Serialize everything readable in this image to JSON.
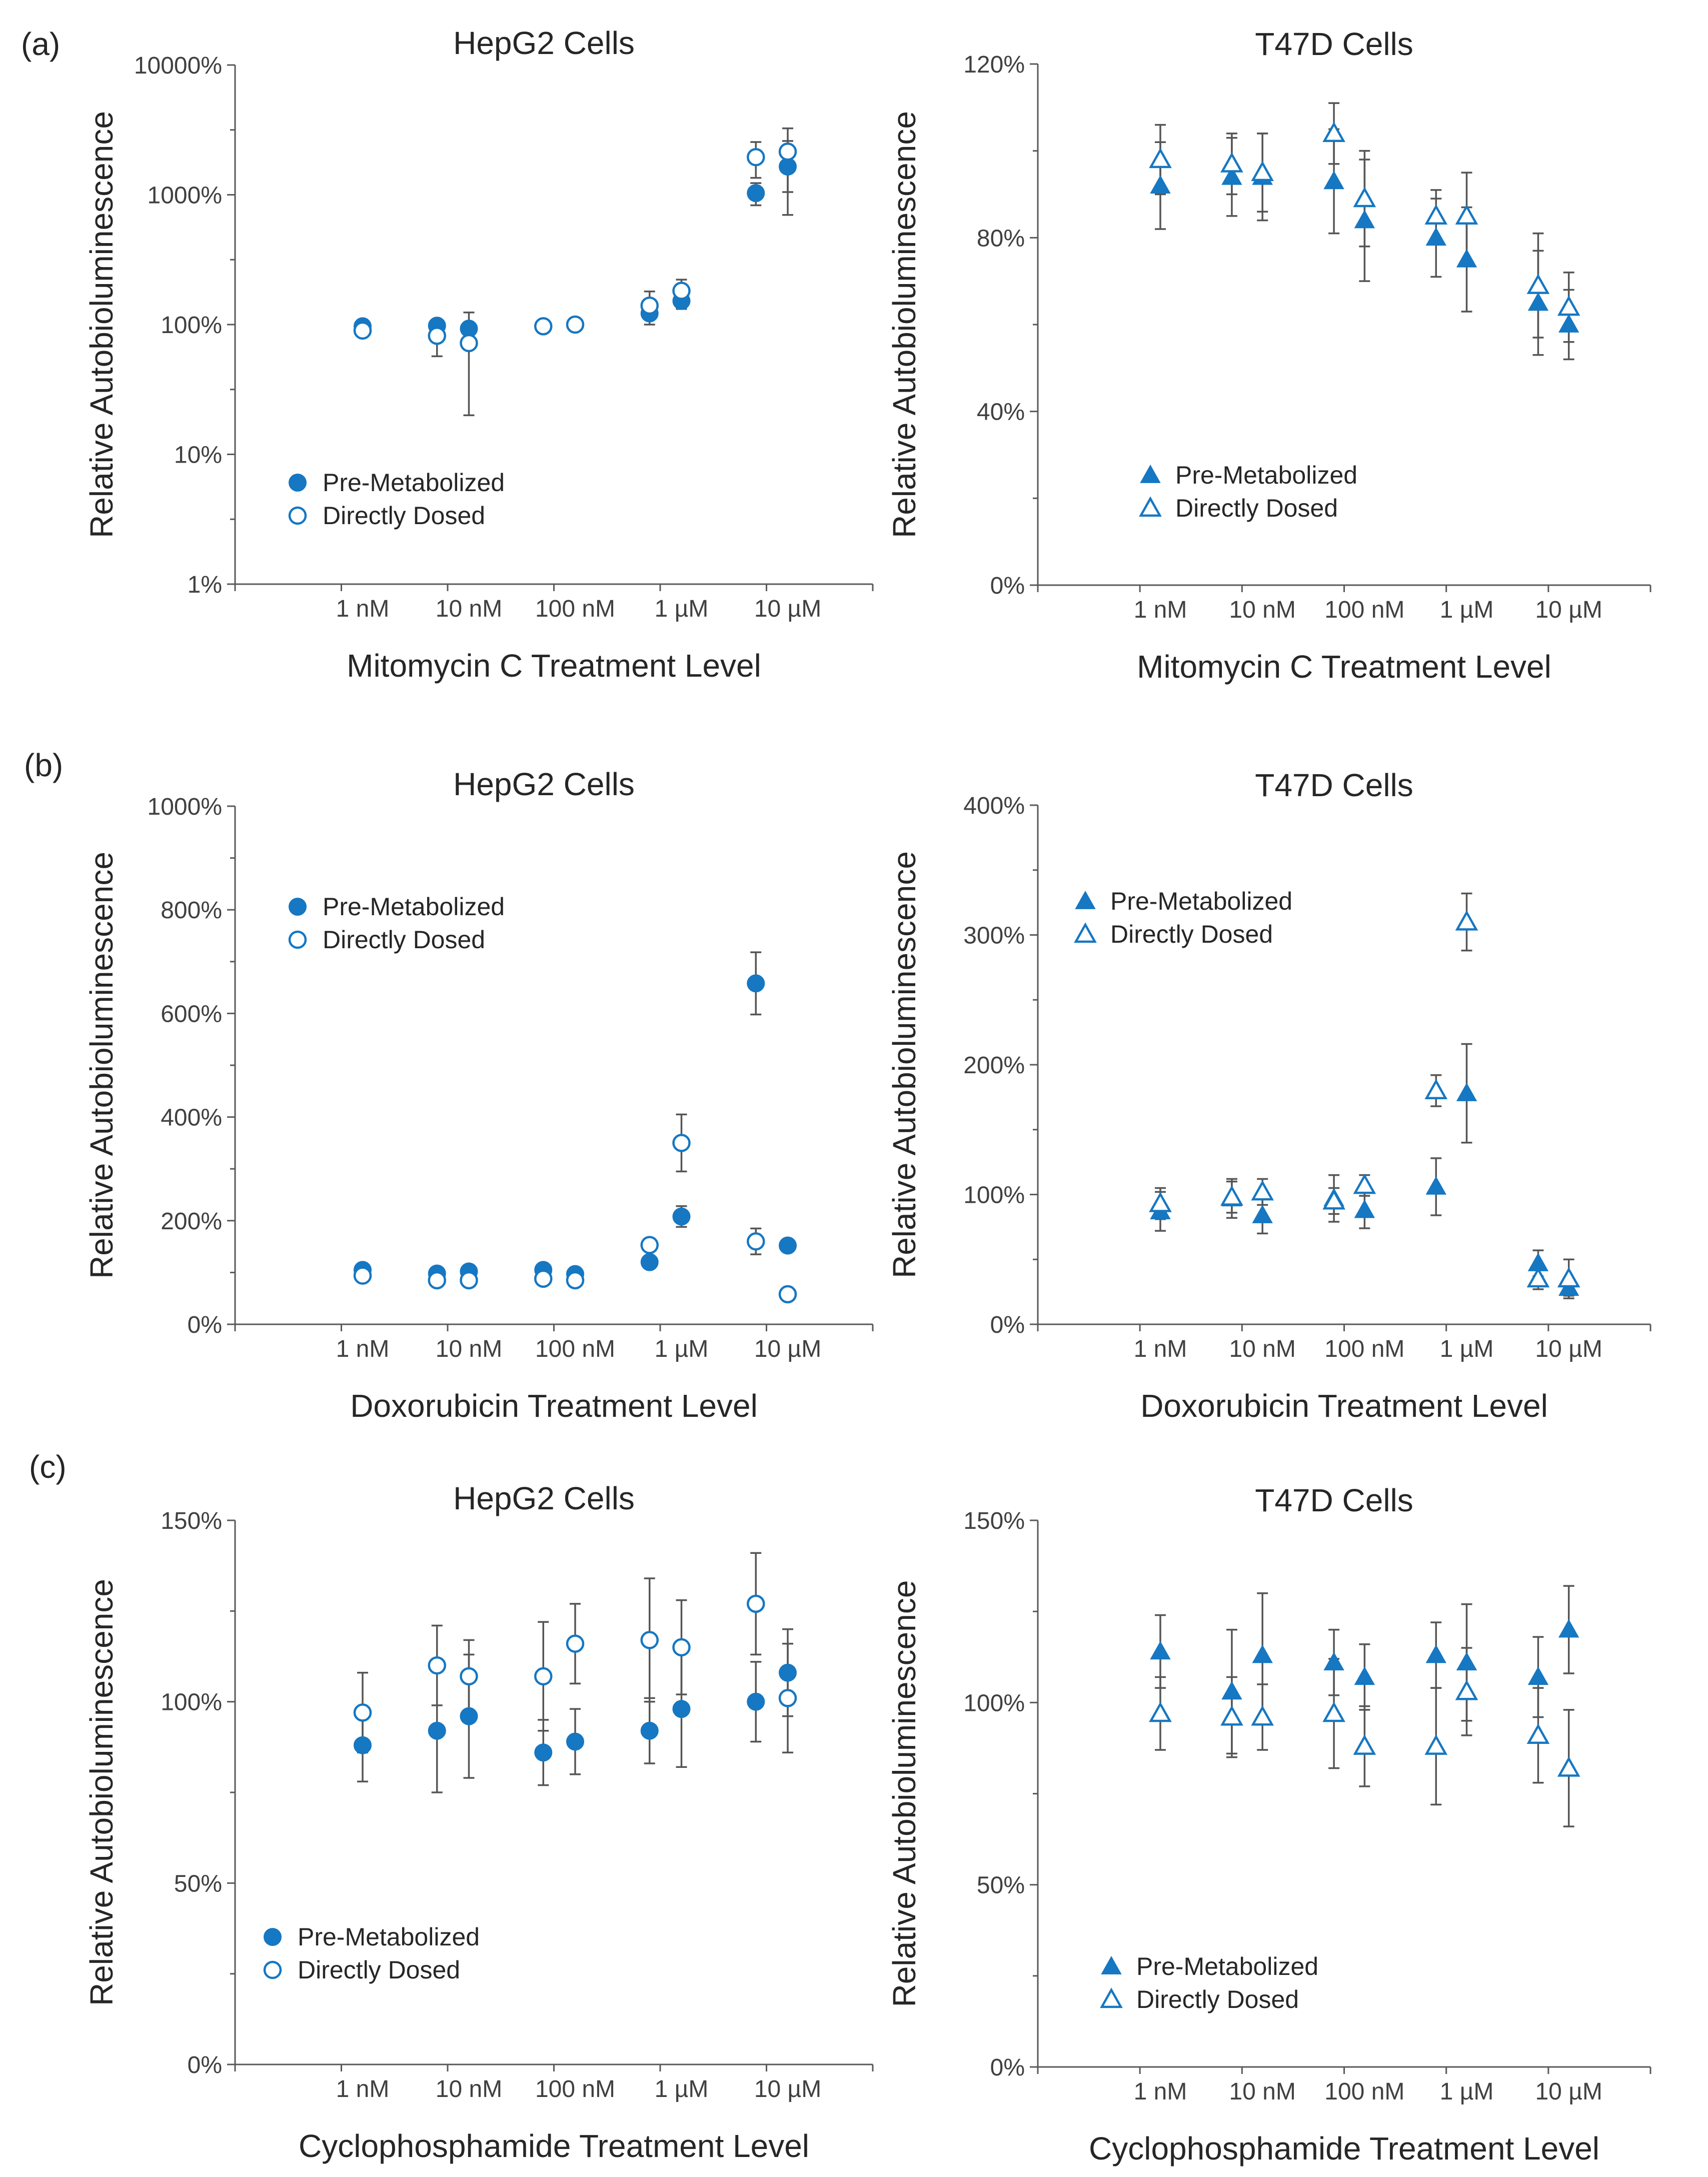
{
  "colors": {
    "marker": "#1677c2",
    "axis": "#595959",
    "error_bar": "#555555"
  },
  "panel_labels": [
    "(a)",
    "(b)",
    "(c)"
  ],
  "chart_data": [
    {
      "type": "scatter",
      "row": "a",
      "col": "left",
      "title": "HepG2 Cells",
      "ylabel": "Relative Autobioluminescence",
      "xlabel": "Mitomycin C Treatment Level",
      "yscale": "log",
      "ylim": [
        1,
        10000
      ],
      "yticks": [
        1,
        10,
        100,
        1000,
        10000
      ],
      "yticklabels": [
        "1%",
        "10%",
        "100%",
        "1000%",
        "10000%"
      ],
      "xlim": [
        -0.7,
        5.3
      ],
      "xticks": [
        0.5,
        1.5,
        2.5,
        3.5,
        4.5
      ],
      "categories": [
        "1 nM",
        "10 nM",
        "100 nM",
        "1 µM",
        "10 µM"
      ],
      "marker": "circle",
      "legend_position": "lower-left",
      "series": [
        {
          "name": "Pre-Metabolized",
          "filled": true,
          "x": [
            0.5,
            1.2,
            1.5,
            2.2,
            2.5,
            3.2,
            3.5,
            4.2,
            4.5
          ],
          "y": [
            97,
            98,
            93,
            97,
            100,
            122,
            152,
            1030,
            1650
          ],
          "err": [
            5,
            6,
            6,
            5,
            5,
            12,
            20,
            200,
            950
          ]
        },
        {
          "name": "Directly Dosed",
          "filled": false,
          "x": [
            0.5,
            1.2,
            1.5,
            2.2,
            2.5,
            3.2,
            3.5,
            4.2,
            4.5
          ],
          "y": [
            90,
            82,
            72,
            97,
            100,
            140,
            182,
            1950,
            2150
          ],
          "err": [
            5,
            25,
            52,
            6,
            6,
            40,
            40,
            600,
            1100
          ]
        }
      ]
    },
    {
      "type": "scatter",
      "row": "a",
      "col": "right",
      "title": "T47D Cells",
      "ylabel": "Relative Autobioluminescence",
      "xlabel": "Mitomycin C Treatment Level",
      "yscale": "linear",
      "ylim": [
        0,
        120
      ],
      "yticks": [
        0,
        40,
        80,
        120
      ],
      "yticklabels": [
        "0%",
        "40%",
        "80%",
        "120%"
      ],
      "xlim": [
        -0.7,
        5.3
      ],
      "xticks": [
        0.5,
        1.5,
        2.5,
        3.5,
        4.5
      ],
      "categories": [
        "1 nM",
        "10 nM",
        "100 nM",
        "1 µM",
        "10 µM"
      ],
      "marker": "triangle",
      "legend_position": "lower-left",
      "series": [
        {
          "name": "Pre-Metabolized",
          "filled": true,
          "x": [
            0.5,
            1.2,
            1.5,
            2.2,
            2.5,
            3.2,
            3.5,
            4.2,
            4.5
          ],
          "y": [
            92,
            94,
            94,
            93,
            84,
            80,
            75,
            65,
            60
          ],
          "err": [
            10,
            9,
            10,
            12,
            14,
            9,
            12,
            12,
            8
          ]
        },
        {
          "name": "Directly Dosed",
          "filled": false,
          "x": [
            0.5,
            1.2,
            1.5,
            2.2,
            2.5,
            3.2,
            3.5,
            4.2,
            4.5
          ],
          "y": [
            98,
            97,
            95,
            104,
            89,
            85,
            85,
            69,
            64
          ],
          "err": [
            8,
            7,
            9,
            7,
            11,
            6,
            10,
            12,
            8
          ]
        }
      ]
    },
    {
      "type": "scatter",
      "row": "b",
      "col": "left",
      "title": "HepG2 Cells",
      "ylabel": "Relative Autobioluminescence",
      "xlabel": "Doxorubicin Treatment Level",
      "yscale": "linear",
      "ylim": [
        0,
        1000
      ],
      "yticks": [
        0,
        200,
        400,
        600,
        800,
        1000
      ],
      "yticklabels": [
        "0%",
        "200%",
        "400%",
        "600%",
        "800%",
        "1000%"
      ],
      "xlim": [
        -0.7,
        5.3
      ],
      "xticks": [
        0.5,
        1.5,
        2.5,
        3.5,
        4.5
      ],
      "categories": [
        "1 nM",
        "10 nM",
        "100 nM",
        "1 µM",
        "10 µM"
      ],
      "marker": "circle",
      "legend_position": "upper-left",
      "series": [
        {
          "name": "Pre-Metabolized",
          "filled": true,
          "x": [
            0.5,
            1.2,
            1.5,
            2.2,
            2.5,
            3.2,
            3.5,
            4.2,
            4.5
          ],
          "y": [
            105,
            98,
            102,
            105,
            97,
            120,
            208,
            658,
            152
          ],
          "err": [
            6,
            6,
            6,
            6,
            6,
            8,
            20,
            60,
            10
          ]
        },
        {
          "name": "Directly Dosed",
          "filled": false,
          "x": [
            0.5,
            1.2,
            1.5,
            2.2,
            2.5,
            3.2,
            3.5,
            4.2,
            4.5
          ],
          "y": [
            94,
            85,
            85,
            88,
            85,
            153,
            350,
            160,
            58
          ],
          "err": [
            5,
            6,
            6,
            6,
            6,
            10,
            55,
            25,
            12
          ]
        }
      ]
    },
    {
      "type": "scatter",
      "row": "b",
      "col": "right",
      "title": "T47D Cells",
      "ylabel": "Relative Autobioluminescence",
      "xlabel": "Doxorubicin Treatment Level",
      "yscale": "linear",
      "ylim": [
        0,
        400
      ],
      "yticks": [
        0,
        100,
        200,
        300,
        400
      ],
      "yticklabels": [
        "0%",
        "100%",
        "200%",
        "300%",
        "400%"
      ],
      "xlim": [
        -0.7,
        5.3
      ],
      "xticks": [
        0.5,
        1.5,
        2.5,
        3.5,
        4.5
      ],
      "categories": [
        "1 nM",
        "10 nM",
        "100 nM",
        "1 µM",
        "10 µM"
      ],
      "marker": "triangle",
      "legend_position": "upper-left",
      "series": [
        {
          "name": "Pre-Metabolized",
          "filled": true,
          "x": [
            0.5,
            1.2,
            1.5,
            2.2,
            2.5,
            3.2,
            3.5,
            4.2,
            4.5
          ],
          "y": [
            87,
            97,
            84,
            97,
            88,
            106,
            178,
            47,
            28
          ],
          "err": [
            15,
            15,
            14,
            18,
            14,
            22,
            38,
            10,
            6
          ]
        },
        {
          "name": "Directly Dosed",
          "filled": false,
          "x": [
            0.5,
            1.2,
            1.5,
            2.2,
            2.5,
            3.2,
            3.5,
            4.2,
            4.5
          ],
          "y": [
            93,
            98,
            102,
            95,
            107,
            180,
            310,
            35,
            35
          ],
          "err": [
            12,
            12,
            10,
            10,
            8,
            12,
            22,
            8,
            15
          ]
        }
      ]
    },
    {
      "type": "scatter",
      "row": "c",
      "col": "left",
      "title": "HepG2 Cells",
      "ylabel": "Relative Autobioluminescence",
      "xlabel": "Cyclophosphamide Treatment Level",
      "yscale": "linear",
      "ylim": [
        0,
        150
      ],
      "yticks": [
        0,
        50,
        100,
        150
      ],
      "yticklabels": [
        "0%",
        "50%",
        "100%",
        "150%"
      ],
      "xlim": [
        -0.7,
        5.3
      ],
      "xticks": [
        0.5,
        1.5,
        2.5,
        3.5,
        4.5
      ],
      "categories": [
        "1 nM",
        "10 nM",
        "100 nM",
        "1 µM",
        "10 µM"
      ],
      "marker": "circle",
      "legend_position": "lower-left",
      "series": [
        {
          "name": "Pre-Metabolized",
          "filled": true,
          "x": [
            0.5,
            1.2,
            1.5,
            2.2,
            2.5,
            3.2,
            3.5,
            4.2,
            4.5
          ],
          "y": [
            88,
            92,
            96,
            86,
            89,
            92,
            98,
            100,
            108
          ],
          "err": [
            10,
            17,
            17,
            9,
            9,
            9,
            16,
            11,
            12
          ]
        },
        {
          "name": "Directly Dosed",
          "filled": false,
          "x": [
            0.5,
            1.2,
            1.5,
            2.2,
            2.5,
            3.2,
            3.5,
            4.2,
            4.5
          ],
          "y": [
            97,
            110,
            107,
            107,
            116,
            117,
            115,
            127,
            101
          ],
          "err": [
            11,
            11,
            10,
            15,
            11,
            17,
            13,
            14,
            15
          ]
        }
      ]
    },
    {
      "type": "scatter",
      "row": "c",
      "col": "right",
      "title": "T47D Cells",
      "ylabel": "Relative Autobioluminescence",
      "xlabel": "Cyclophosphamide Treatment Level",
      "yscale": "linear",
      "ylim": [
        0,
        150
      ],
      "yticks": [
        0,
        50,
        100,
        150
      ],
      "yticklabels": [
        "0%",
        "50%",
        "100%",
        "150%"
      ],
      "xlim": [
        -0.7,
        5.3
      ],
      "xticks": [
        0.5,
        1.5,
        2.5,
        3.5,
        4.5
      ],
      "categories": [
        "1 nM",
        "10 nM",
        "100 nM",
        "1 µM",
        "10 µM"
      ],
      "marker": "triangle",
      "legend_position": "lower-left",
      "series": [
        {
          "name": "Pre-Metabolized",
          "filled": true,
          "x": [
            0.5,
            1.2,
            1.5,
            2.2,
            2.5,
            3.2,
            3.5,
            4.2,
            4.5
          ],
          "y": [
            114,
            103,
            113,
            111,
            107,
            113,
            111,
            107,
            120
          ],
          "err": [
            10,
            17,
            17,
            9,
            9,
            9,
            16,
            11,
            12
          ]
        },
        {
          "name": "Directly Dosed",
          "filled": false,
          "x": [
            0.5,
            1.2,
            1.5,
            2.2,
            2.5,
            3.2,
            3.5,
            4.2,
            4.5
          ],
          "y": [
            97,
            96,
            96,
            97,
            88,
            88,
            103,
            91,
            82
          ],
          "err": [
            10,
            11,
            9,
            15,
            11,
            16,
            12,
            13,
            16
          ]
        }
      ]
    }
  ]
}
